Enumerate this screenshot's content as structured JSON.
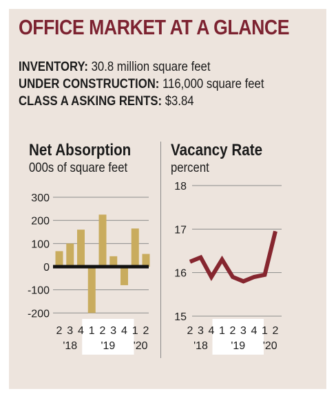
{
  "header": {
    "title": "OFFICE MARKET AT A GLANCE"
  },
  "stats": [
    {
      "label": "INVENTORY:",
      "value": "30.8 million square feet"
    },
    {
      "label": "UNDER CONSTRUCTION:",
      "value": "116,000 square feet"
    },
    {
      "label": "CLASS A ASKING RENTS:",
      "value": "$3.84"
    }
  ],
  "colors": {
    "title": "#7c2230",
    "bar": "#c9ac5e",
    "line": "#86262f",
    "panel": "#ede4dd",
    "highlight": "#ffffff"
  },
  "chart_data": [
    {
      "type": "bar",
      "title": "Net Absorption",
      "subtitle": "000s of square feet",
      "categories": [
        "2",
        "3",
        "4",
        "1",
        "2",
        "3",
        "4",
        "1",
        "2"
      ],
      "year_labels": [
        {
          "label": "'18",
          "quarters": [
            "2",
            "3",
            "4"
          ]
        },
        {
          "label": "'19",
          "quarters": [
            "1",
            "2",
            "3",
            "4"
          ]
        },
        {
          "label": "'20",
          "quarters": [
            "1",
            "2"
          ]
        }
      ],
      "values": [
        67,
        100,
        160,
        -200,
        225,
        45,
        -80,
        165,
        55
      ],
      "yticks": [
        300,
        200,
        100,
        0,
        -100,
        -200
      ],
      "ylim": [
        -200,
        300
      ],
      "grid": true
    },
    {
      "type": "line",
      "title": "Vacancy Rate",
      "subtitle": "percent",
      "categories": [
        "2",
        "3",
        "4",
        "1",
        "2",
        "3",
        "4",
        "1",
        "2"
      ],
      "year_labels": [
        {
          "label": "'18",
          "quarters": [
            "2",
            "3",
            "4"
          ]
        },
        {
          "label": "'19",
          "quarters": [
            "1",
            "2",
            "3",
            "4"
          ]
        },
        {
          "label": "'20",
          "quarters": [
            "1",
            "2"
          ]
        }
      ],
      "values": [
        16.25,
        16.35,
        15.9,
        16.3,
        15.9,
        15.8,
        15.9,
        15.95,
        16.95
      ],
      "yticks": [
        18,
        17,
        16,
        15
      ],
      "ylim": [
        15,
        18
      ],
      "grid": true
    }
  ]
}
